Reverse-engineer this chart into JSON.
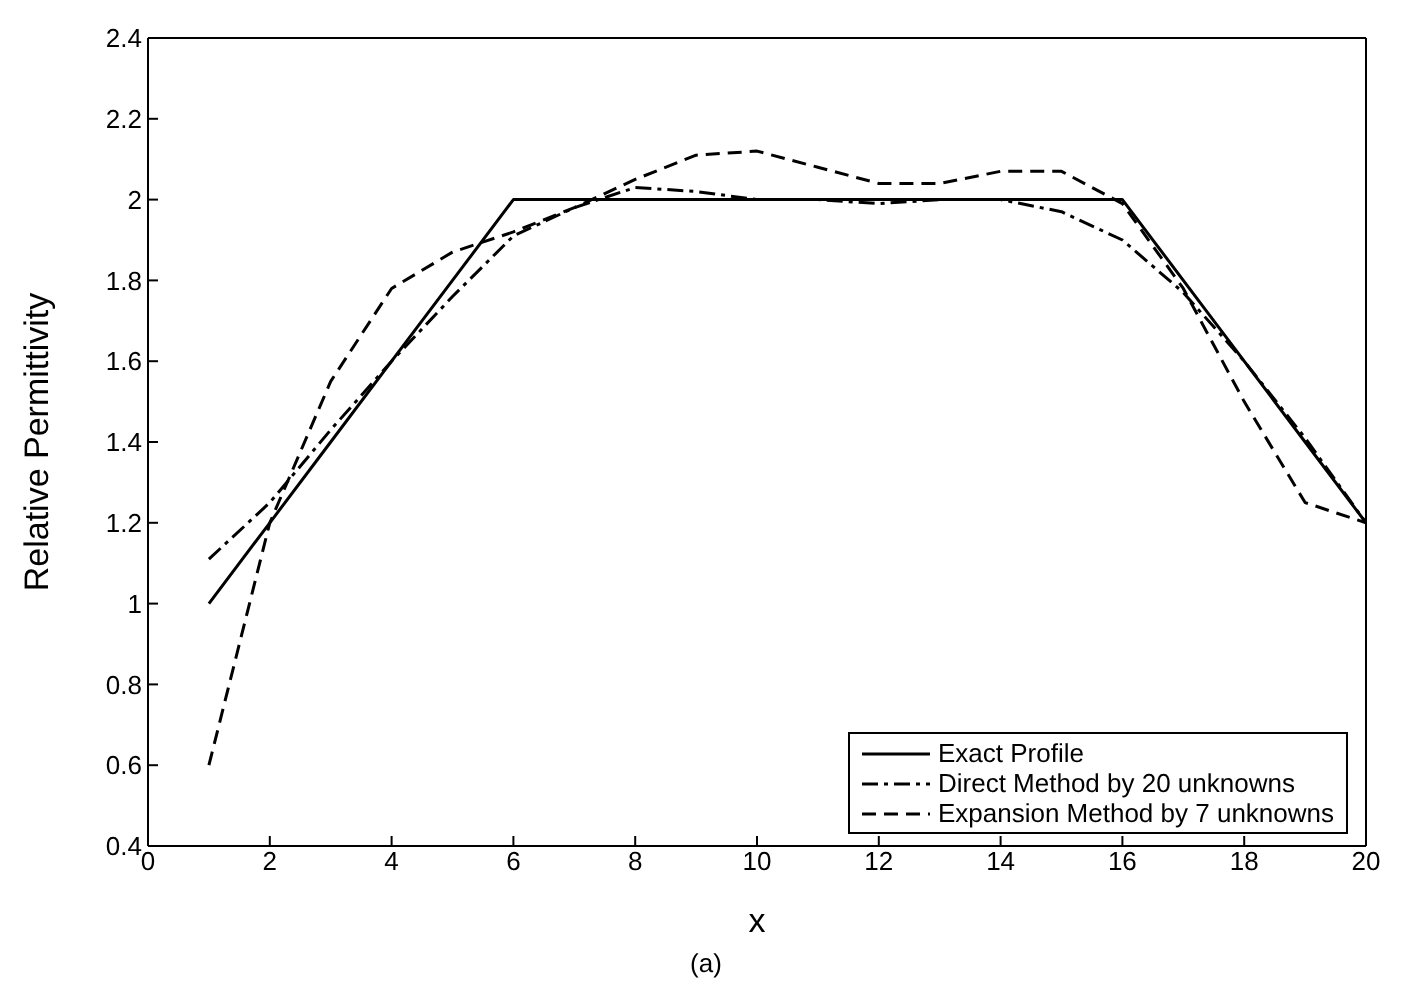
{
  "chart_data": {
    "type": "line",
    "xlabel": "x",
    "ylabel": "Relative Permittivity",
    "annotations": [
      "(a)"
    ],
    "x": [
      1,
      2,
      3,
      4,
      5,
      6,
      7,
      8,
      9,
      10,
      11,
      12,
      13,
      14,
      15,
      16,
      17,
      18,
      19,
      20
    ],
    "series": [
      {
        "name": "Exact Profile",
        "color": "#000000",
        "line_style": "solid",
        "values": [
          1.0,
          1.2,
          1.4,
          1.6,
          1.8,
          2.0,
          2.0,
          2.0,
          2.0,
          2.0,
          2.0,
          2.0,
          2.0,
          2.0,
          2.0,
          2.0,
          1.8,
          1.6,
          1.4,
          1.2
        ]
      },
      {
        "name": "Direct Method by 20 unknowns",
        "color": "#000000",
        "line_style": "dashdot",
        "values": [
          1.11,
          1.25,
          1.43,
          1.6,
          1.76,
          1.91,
          1.98,
          2.03,
          2.02,
          2.0,
          2.0,
          1.99,
          2.0,
          2.0,
          1.97,
          1.9,
          1.77,
          1.6,
          1.41,
          1.2
        ]
      },
      {
        "name": "Expansion Method by 7 unknowns",
        "color": "#000000",
        "line_style": "dashed",
        "values": [
          0.6,
          1.2,
          1.55,
          1.78,
          1.87,
          1.92,
          1.98,
          2.05,
          2.11,
          2.12,
          2.08,
          2.04,
          2.04,
          2.07,
          2.07,
          1.99,
          1.78,
          1.5,
          1.25,
          1.2
        ]
      }
    ],
    "xlim": [
      0,
      20
    ],
    "xticks": [
      0,
      2,
      4,
      6,
      8,
      10,
      12,
      14,
      16,
      18,
      20
    ],
    "ylim": [
      0.4,
      2.4
    ],
    "yticks": [
      0.4,
      0.6,
      0.8,
      1,
      1.2,
      1.4,
      1.6,
      1.8,
      2,
      2.2,
      2.4
    ],
    "grid": false,
    "legend": "bottom right",
    "marker": "none"
  }
}
